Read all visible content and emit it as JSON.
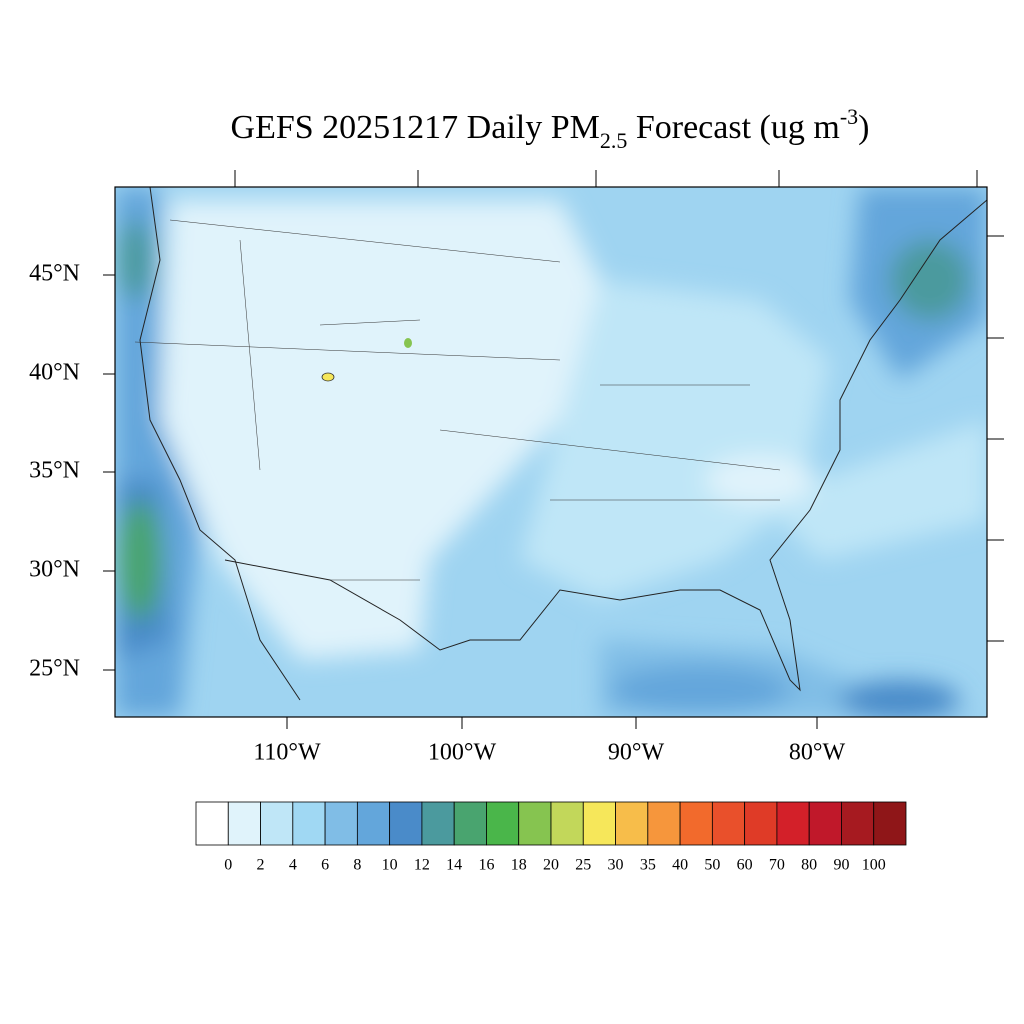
{
  "title": {
    "main": "GEFS 20251217 Daily PM",
    "sub": "2.5",
    "mid": " Forecast (ug m",
    "sup": "-3",
    "end": ")"
  },
  "lat_labels": [
    "45°N",
    "40°N",
    "35°N",
    "30°N",
    "25°N"
  ],
  "lon_labels": [
    "110°W",
    "100°W",
    "90°W",
    "80°W"
  ],
  "colorbar": {
    "levels": [
      0,
      2,
      4,
      6,
      8,
      10,
      12,
      14,
      16,
      18,
      20,
      25,
      30,
      35,
      40,
      50,
      60,
      70,
      80,
      90,
      100
    ],
    "colors": [
      "#ffffff",
      "#e0f3fb",
      "#bfe6f7",
      "#a0d8f3",
      "#80bde6",
      "#63a6db",
      "#4a8bc9",
      "#4b9a9e",
      "#49a46f",
      "#4ab64a",
      "#86c450",
      "#c2d75a",
      "#f6e75a",
      "#f7bd4a",
      "#f6963c",
      "#f26a2c",
      "#e9502b",
      "#df3b27",
      "#d32029",
      "#c0182a",
      "#a61a20",
      "#8f1618"
    ]
  }
}
